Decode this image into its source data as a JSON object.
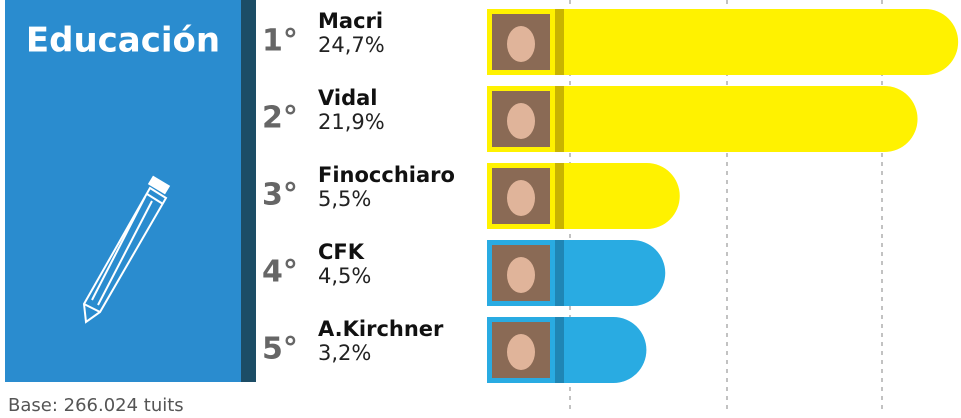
{
  "chart_data": {
    "type": "bar",
    "title": "Educación",
    "categories": [
      "Macri",
      "Vidal",
      "Finocchiaro",
      "CFK",
      "A.Kirchner"
    ],
    "ranks": [
      "1°",
      "2°",
      "3°",
      "4°",
      "5°"
    ],
    "values": [
      24.7,
      21.9,
      5.5,
      4.5,
      3.2
    ],
    "value_labels": [
      "24,7%",
      "21,9%",
      "5,5%",
      "4,5%",
      "3,2%"
    ],
    "colors": [
      "#fff200",
      "#fff200",
      "#fff200",
      "#29abe2",
      "#29abe2"
    ],
    "note": "Base: 266.024 tuits"
  }
}
